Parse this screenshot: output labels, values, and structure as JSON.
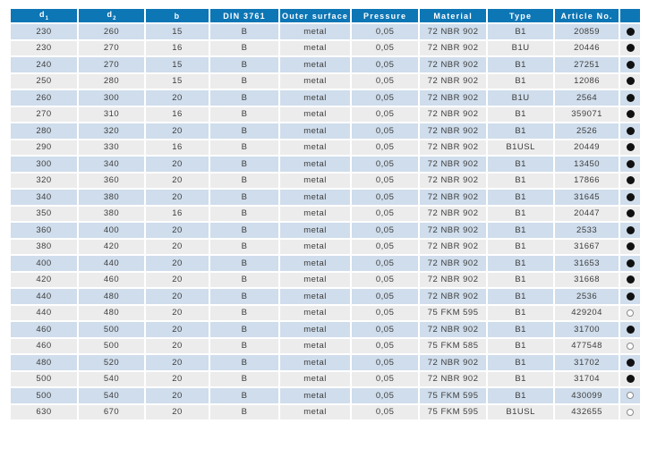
{
  "colors": {
    "header_bg": "#0d76b5",
    "row_blue": "#cfddec",
    "row_gray": "#ececec",
    "cell_text": "#3d3d3d",
    "header_text": "#ffffff",
    "dot_filled": "#111111",
    "dot_open_border": "#8c8c8c"
  },
  "icons": {
    "filled": "filled-circle-icon",
    "open": "open-circle-icon"
  },
  "table": {
    "header": {
      "d1": {
        "base": "d",
        "sub": "1"
      },
      "d2": {
        "base": "d",
        "sub": "2"
      },
      "b": "b",
      "din": "DIN 3761",
      "outer_surface": "Outer surface",
      "pressure": "Pressure",
      "material": "Material",
      "type": "Type",
      "article_no": "Article No.",
      "availability": ""
    },
    "rows": [
      {
        "d1": "230",
        "d2": "260",
        "b": "15",
        "din": "B",
        "outer_surface": "metal",
        "pressure": "0,05",
        "material": "72 NBR 902",
        "type": "B1",
        "article_no": "20859",
        "availability": "filled"
      },
      {
        "d1": "230",
        "d2": "270",
        "b": "16",
        "din": "B",
        "outer_surface": "metal",
        "pressure": "0,05",
        "material": "72 NBR 902",
        "type": "B1U",
        "article_no": "20446",
        "availability": "filled"
      },
      {
        "d1": "240",
        "d2": "270",
        "b": "15",
        "din": "B",
        "outer_surface": "metal",
        "pressure": "0,05",
        "material": "72 NBR 902",
        "type": "B1",
        "article_no": "27251",
        "availability": "filled"
      },
      {
        "d1": "250",
        "d2": "280",
        "b": "15",
        "din": "B",
        "outer_surface": "metal",
        "pressure": "0,05",
        "material": "72 NBR 902",
        "type": "B1",
        "article_no": "12086",
        "availability": "filled"
      },
      {
        "d1": "260",
        "d2": "300",
        "b": "20",
        "din": "B",
        "outer_surface": "metal",
        "pressure": "0,05",
        "material": "72 NBR 902",
        "type": "B1U",
        "article_no": "2564",
        "availability": "filled"
      },
      {
        "d1": "270",
        "d2": "310",
        "b": "16",
        "din": "B",
        "outer_surface": "metal",
        "pressure": "0,05",
        "material": "72 NBR 902",
        "type": "B1",
        "article_no": "359071",
        "availability": "filled"
      },
      {
        "d1": "280",
        "d2": "320",
        "b": "20",
        "din": "B",
        "outer_surface": "metal",
        "pressure": "0,05",
        "material": "72 NBR 902",
        "type": "B1",
        "article_no": "2526",
        "availability": "filled"
      },
      {
        "d1": "290",
        "d2": "330",
        "b": "16",
        "din": "B",
        "outer_surface": "metal",
        "pressure": "0,05",
        "material": "72 NBR 902",
        "type": "B1USL",
        "article_no": "20449",
        "availability": "filled"
      },
      {
        "d1": "300",
        "d2": "340",
        "b": "20",
        "din": "B",
        "outer_surface": "metal",
        "pressure": "0,05",
        "material": "72 NBR 902",
        "type": "B1",
        "article_no": "13450",
        "availability": "filled"
      },
      {
        "d1": "320",
        "d2": "360",
        "b": "20",
        "din": "B",
        "outer_surface": "metal",
        "pressure": "0,05",
        "material": "72 NBR 902",
        "type": "B1",
        "article_no": "17866",
        "availability": "filled"
      },
      {
        "d1": "340",
        "d2": "380",
        "b": "20",
        "din": "B",
        "outer_surface": "metal",
        "pressure": "0,05",
        "material": "72 NBR 902",
        "type": "B1",
        "article_no": "31645",
        "availability": "filled"
      },
      {
        "d1": "350",
        "d2": "380",
        "b": "16",
        "din": "B",
        "outer_surface": "metal",
        "pressure": "0,05",
        "material": "72 NBR 902",
        "type": "B1",
        "article_no": "20447",
        "availability": "filled"
      },
      {
        "d1": "360",
        "d2": "400",
        "b": "20",
        "din": "B",
        "outer_surface": "metal",
        "pressure": "0,05",
        "material": "72 NBR 902",
        "type": "B1",
        "article_no": "2533",
        "availability": "filled"
      },
      {
        "d1": "380",
        "d2": "420",
        "b": "20",
        "din": "B",
        "outer_surface": "metal",
        "pressure": "0,05",
        "material": "72 NBR 902",
        "type": "B1",
        "article_no": "31667",
        "availability": "filled"
      },
      {
        "d1": "400",
        "d2": "440",
        "b": "20",
        "din": "B",
        "outer_surface": "metal",
        "pressure": "0,05",
        "material": "72 NBR 902",
        "type": "B1",
        "article_no": "31653",
        "availability": "filled"
      },
      {
        "d1": "420",
        "d2": "460",
        "b": "20",
        "din": "B",
        "outer_surface": "metal",
        "pressure": "0,05",
        "material": "72 NBR 902",
        "type": "B1",
        "article_no": "31668",
        "availability": "filled"
      },
      {
        "d1": "440",
        "d2": "480",
        "b": "20",
        "din": "B",
        "outer_surface": "metal",
        "pressure": "0,05",
        "material": "72 NBR 902",
        "type": "B1",
        "article_no": "2536",
        "availability": "filled"
      },
      {
        "d1": "440",
        "d2": "480",
        "b": "20",
        "din": "B",
        "outer_surface": "metal",
        "pressure": "0,05",
        "material": "75 FKM 595",
        "type": "B1",
        "article_no": "429204",
        "availability": "open"
      },
      {
        "d1": "460",
        "d2": "500",
        "b": "20",
        "din": "B",
        "outer_surface": "metal",
        "pressure": "0,05",
        "material": "72 NBR 902",
        "type": "B1",
        "article_no": "31700",
        "availability": "filled"
      },
      {
        "d1": "460",
        "d2": "500",
        "b": "20",
        "din": "B",
        "outer_surface": "metal",
        "pressure": "0,05",
        "material": "75 FKM 585",
        "type": "B1",
        "article_no": "477548",
        "availability": "open"
      },
      {
        "d1": "480",
        "d2": "520",
        "b": "20",
        "din": "B",
        "outer_surface": "metal",
        "pressure": "0,05",
        "material": "72 NBR 902",
        "type": "B1",
        "article_no": "31702",
        "availability": "filled"
      },
      {
        "d1": "500",
        "d2": "540",
        "b": "20",
        "din": "B",
        "outer_surface": "metal",
        "pressure": "0,05",
        "material": "72 NBR 902",
        "type": "B1",
        "article_no": "31704",
        "availability": "filled"
      },
      {
        "d1": "500",
        "d2": "540",
        "b": "20",
        "din": "B",
        "outer_surface": "metal",
        "pressure": "0,05",
        "material": "75 FKM 595",
        "type": "B1",
        "article_no": "430099",
        "availability": "open"
      },
      {
        "d1": "630",
        "d2": "670",
        "b": "20",
        "din": "B",
        "outer_surface": "metal",
        "pressure": "0,05",
        "material": "75 FKM 595",
        "type": "B1USL",
        "article_no": "432655",
        "availability": "open"
      }
    ]
  }
}
